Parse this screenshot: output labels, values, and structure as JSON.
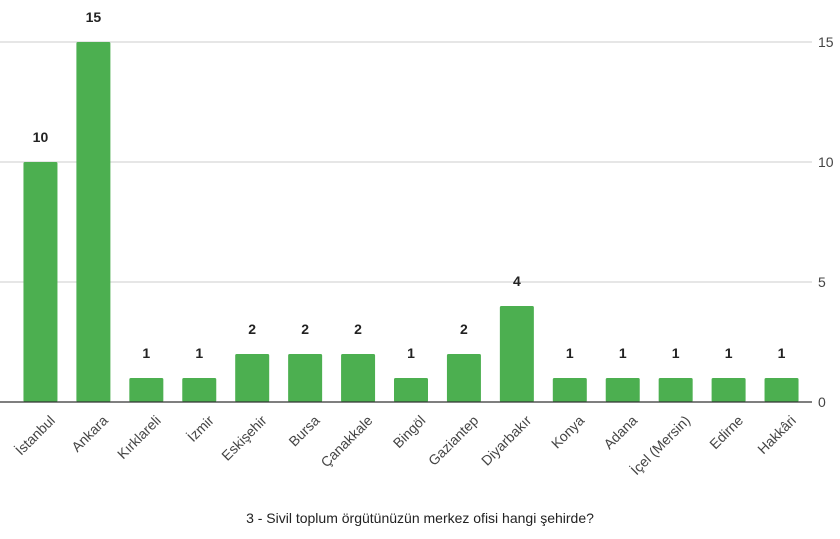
{
  "chart_data": {
    "type": "bar",
    "title": "3 - Sivil toplum örgütünüzün merkez ofisi hangi şehirde?",
    "xlabel": "",
    "ylabel": "",
    "categories": [
      "İstanbul",
      "Ankara",
      "Kırklareli",
      "İzmir",
      "Eskişehir",
      "Bursa",
      "Çanakkale",
      "Bingöl",
      "Gaziantep",
      "Diyarbakır",
      "Konya",
      "Adana",
      "İçel (Mersin)",
      "Edirne",
      "Hakkâri"
    ],
    "values": [
      10,
      15,
      1,
      1,
      2,
      2,
      2,
      1,
      2,
      4,
      1,
      1,
      1,
      1,
      1
    ],
    "ylim": [
      0,
      15
    ],
    "yticks": [
      0,
      5,
      10,
      15
    ],
    "grid": true,
    "y_axis_side": "right",
    "bar_color": "#4caf50",
    "show_data_labels": true
  }
}
